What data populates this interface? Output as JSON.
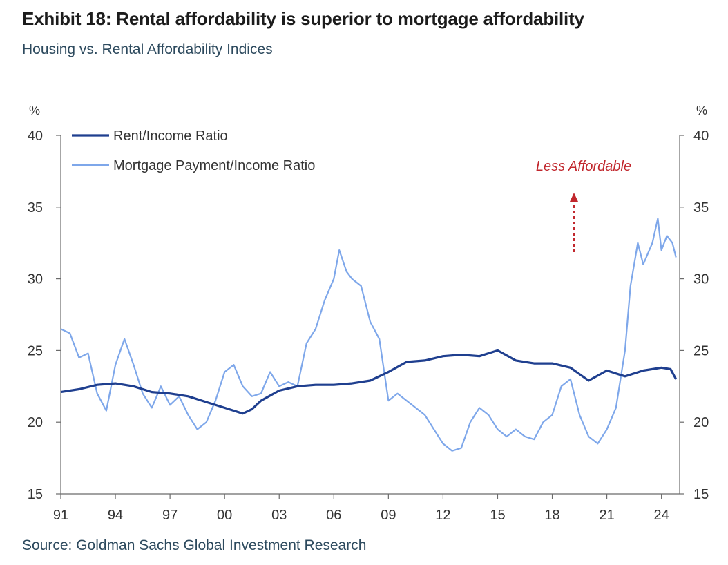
{
  "title": "Exhibit 18: Rental affordability is superior to mortgage affordability",
  "subtitle": "Housing vs. Rental Affordability Indices",
  "source": "Source: Goldman Sachs Global Investment Research",
  "chart_data": {
    "type": "line",
    "ylabel_left": "%",
    "ylabel_right": "%",
    "ylim": [
      15,
      40
    ],
    "yticks": [
      15,
      20,
      25,
      30,
      35,
      40
    ],
    "xlim": [
      1991,
      2025
    ],
    "xticks": [
      {
        "year": 1991,
        "label": "91"
      },
      {
        "year": 1994,
        "label": "94"
      },
      {
        "year": 1997,
        "label": "97"
      },
      {
        "year": 2000,
        "label": "00"
      },
      {
        "year": 2003,
        "label": "03"
      },
      {
        "year": 2006,
        "label": "06"
      },
      {
        "year": 2009,
        "label": "09"
      },
      {
        "year": 2012,
        "label": "12"
      },
      {
        "year": 2015,
        "label": "15"
      },
      {
        "year": 2018,
        "label": "18"
      },
      {
        "year": 2021,
        "label": "21"
      },
      {
        "year": 2024,
        "label": "24"
      }
    ],
    "grid": false,
    "legend_position": "top-left",
    "annotation": {
      "text": "Less Affordable",
      "arrow": "up"
    },
    "series": [
      {
        "name": "Rent/Income Ratio",
        "color": "#1f3f8f",
        "points": [
          [
            1991.0,
            22.1
          ],
          [
            1992.0,
            22.3
          ],
          [
            1993.0,
            22.6
          ],
          [
            1994.0,
            22.7
          ],
          [
            1995.0,
            22.5
          ],
          [
            1996.0,
            22.1
          ],
          [
            1997.0,
            22.0
          ],
          [
            1998.0,
            21.8
          ],
          [
            1999.0,
            21.4
          ],
          [
            2000.0,
            21.0
          ],
          [
            2001.0,
            20.6
          ],
          [
            2001.5,
            20.9
          ],
          [
            2002.0,
            21.5
          ],
          [
            2003.0,
            22.2
          ],
          [
            2004.0,
            22.5
          ],
          [
            2005.0,
            22.6
          ],
          [
            2006.0,
            22.6
          ],
          [
            2007.0,
            22.7
          ],
          [
            2008.0,
            22.9
          ],
          [
            2009.0,
            23.5
          ],
          [
            2010.0,
            24.2
          ],
          [
            2011.0,
            24.3
          ],
          [
            2012.0,
            24.6
          ],
          [
            2013.0,
            24.7
          ],
          [
            2014.0,
            24.6
          ],
          [
            2015.0,
            25.0
          ],
          [
            2016.0,
            24.3
          ],
          [
            2017.0,
            24.1
          ],
          [
            2018.0,
            24.1
          ],
          [
            2019.0,
            23.8
          ],
          [
            2020.0,
            22.9
          ],
          [
            2021.0,
            23.6
          ],
          [
            2022.0,
            23.2
          ],
          [
            2023.0,
            23.6
          ],
          [
            2024.0,
            23.8
          ],
          [
            2024.5,
            23.7
          ],
          [
            2024.8,
            23.0
          ]
        ]
      },
      {
        "name": "Mortgage Payment/Income Ratio",
        "color": "#7ea7ea",
        "points": [
          [
            1991.0,
            26.5
          ],
          [
            1991.5,
            26.2
          ],
          [
            1992.0,
            24.5
          ],
          [
            1992.5,
            24.8
          ],
          [
            1993.0,
            22.0
          ],
          [
            1993.5,
            20.8
          ],
          [
            1994.0,
            24.0
          ],
          [
            1994.5,
            25.8
          ],
          [
            1995.0,
            24.0
          ],
          [
            1995.5,
            22.0
          ],
          [
            1996.0,
            21.0
          ],
          [
            1996.5,
            22.5
          ],
          [
            1997.0,
            21.2
          ],
          [
            1997.5,
            21.8
          ],
          [
            1998.0,
            20.5
          ],
          [
            1998.5,
            19.5
          ],
          [
            1999.0,
            20.0
          ],
          [
            1999.5,
            21.5
          ],
          [
            2000.0,
            23.5
          ],
          [
            2000.5,
            24.0
          ],
          [
            2001.0,
            22.5
          ],
          [
            2001.5,
            21.8
          ],
          [
            2002.0,
            22.0
          ],
          [
            2002.5,
            23.5
          ],
          [
            2003.0,
            22.5
          ],
          [
            2003.5,
            22.8
          ],
          [
            2004.0,
            22.5
          ],
          [
            2004.5,
            25.5
          ],
          [
            2005.0,
            26.5
          ],
          [
            2005.5,
            28.5
          ],
          [
            2006.0,
            30.0
          ],
          [
            2006.3,
            32.0
          ],
          [
            2006.7,
            30.5
          ],
          [
            2007.0,
            30.0
          ],
          [
            2007.5,
            29.5
          ],
          [
            2008.0,
            27.0
          ],
          [
            2008.5,
            25.8
          ],
          [
            2009.0,
            21.5
          ],
          [
            2009.5,
            22.0
          ],
          [
            2010.0,
            21.5
          ],
          [
            2010.5,
            21.0
          ],
          [
            2011.0,
            20.5
          ],
          [
            2011.5,
            19.5
          ],
          [
            2012.0,
            18.5
          ],
          [
            2012.5,
            18.0
          ],
          [
            2013.0,
            18.2
          ],
          [
            2013.5,
            20.0
          ],
          [
            2014.0,
            21.0
          ],
          [
            2014.5,
            20.5
          ],
          [
            2015.0,
            19.5
          ],
          [
            2015.5,
            19.0
          ],
          [
            2016.0,
            19.5
          ],
          [
            2016.5,
            19.0
          ],
          [
            2017.0,
            18.8
          ],
          [
            2017.5,
            20.0
          ],
          [
            2018.0,
            20.5
          ],
          [
            2018.5,
            22.5
          ],
          [
            2019.0,
            23.0
          ],
          [
            2019.5,
            20.5
          ],
          [
            2020.0,
            19.0
          ],
          [
            2020.5,
            18.5
          ],
          [
            2021.0,
            19.5
          ],
          [
            2021.5,
            21.0
          ],
          [
            2022.0,
            25.0
          ],
          [
            2022.3,
            29.5
          ],
          [
            2022.7,
            32.5
          ],
          [
            2023.0,
            31.0
          ],
          [
            2023.5,
            32.5
          ],
          [
            2023.8,
            34.2
          ],
          [
            2024.0,
            32.0
          ],
          [
            2024.3,
            33.0
          ],
          [
            2024.6,
            32.5
          ],
          [
            2024.8,
            31.5
          ]
        ]
      }
    ]
  }
}
